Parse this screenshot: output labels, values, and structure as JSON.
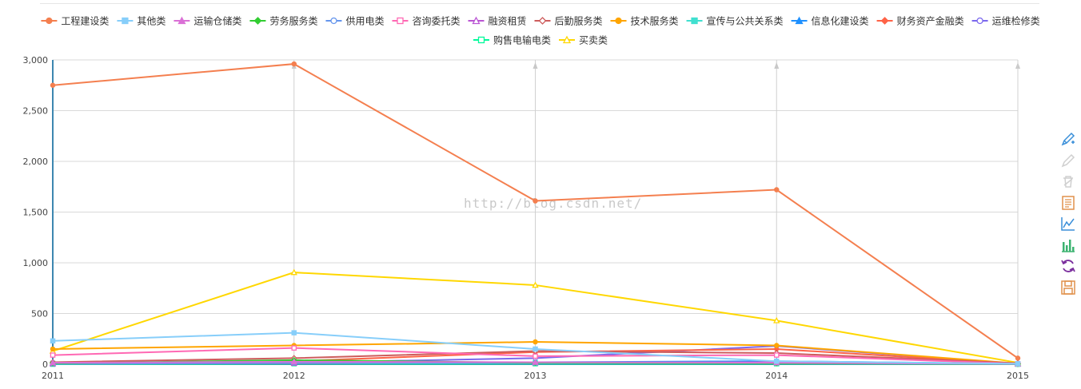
{
  "watermark": "http://blog.csdn.net/",
  "toolbox": [
    {
      "name": "mark-pen-icon",
      "color": "#3a8fd9",
      "enabled": true
    },
    {
      "name": "mark-undo-icon",
      "color": "#cfcfcf",
      "enabled": false
    },
    {
      "name": "mark-clear-icon",
      "color": "#cfcfcf",
      "enabled": false
    },
    {
      "name": "data-view-icon",
      "color": "#e0914b",
      "enabled": true
    },
    {
      "name": "line-chart-icon",
      "color": "#3a8fd9",
      "enabled": true
    },
    {
      "name": "bar-chart-icon",
      "color": "#3cb371",
      "enabled": true
    },
    {
      "name": "restore-icon",
      "color": "#7b2f9e",
      "enabled": true
    },
    {
      "name": "save-image-icon",
      "color": "#e0914b",
      "enabled": true
    }
  ],
  "chart_data": {
    "type": "line",
    "x": [
      "2011",
      "2012",
      "2013",
      "2014",
      "2015"
    ],
    "ylim": [
      0,
      3000
    ],
    "yticks": [
      "0",
      "500",
      "1,000",
      "1,500",
      "2,000",
      "2,500",
      "3,000"
    ],
    "yticks_values": [
      0,
      500,
      1000,
      1500,
      2000,
      2500,
      3000
    ],
    "grid": true,
    "legend_position": "top-center",
    "series": [
      {
        "name": "工程建设类",
        "color": "#f47f4f",
        "symbol": "circle-filled",
        "values": [
          2750,
          2960,
          1610,
          1720,
          60
        ]
      },
      {
        "name": "其他类",
        "color": "#87cefa",
        "symbol": "square-filled",
        "values": [
          230,
          310,
          150,
          30,
          5
        ]
      },
      {
        "name": "运输仓储类",
        "color": "#da70d6",
        "symbol": "triangle-filled",
        "values": [
          15,
          25,
          20,
          15,
          3
        ]
      },
      {
        "name": "劳务服务类",
        "color": "#32cd32",
        "symbol": "diamond-filled",
        "values": [
          10,
          40,
          15,
          10,
          2
        ]
      },
      {
        "name": "供用电类",
        "color": "#6495ed",
        "symbol": "circle-empty",
        "values": [
          5,
          15,
          10,
          8,
          2
        ]
      },
      {
        "name": "咨询委托类",
        "color": "#ff69b4",
        "symbol": "square-empty",
        "values": [
          90,
          160,
          80,
          90,
          5
        ]
      },
      {
        "name": "融资租赁",
        "color": "#ba55d3",
        "symbol": "triangle-empty",
        "values": [
          5,
          10,
          15,
          20,
          2
        ]
      },
      {
        "name": "后勤服务类",
        "color": "#cd5c5c",
        "symbol": "diamond-empty",
        "values": [
          20,
          60,
          130,
          110,
          10
        ]
      },
      {
        "name": "技术服务类",
        "color": "#ffa500",
        "symbol": "circle-filled",
        "values": [
          150,
          185,
          220,
          185,
          8
        ]
      },
      {
        "name": "宣传与公共关系类",
        "color": "#40e0d0",
        "symbol": "square-filled",
        "values": [
          10,
          20,
          15,
          20,
          3
        ]
      },
      {
        "name": "信息化建设类",
        "color": "#1e90ff",
        "symbol": "triangle-filled",
        "values": [
          15,
          20,
          20,
          30,
          5
        ]
      },
      {
        "name": "财务资产金融类",
        "color": "#ff6347",
        "symbol": "diamond-filled",
        "values": [
          10,
          30,
          120,
          150,
          5
        ]
      },
      {
        "name": "运维检修类",
        "color": "#7b68ee",
        "symbol": "circle-empty",
        "values": [
          5,
          15,
          60,
          180,
          5
        ]
      },
      {
        "name": "购售电输电类",
        "color": "#00fa9a",
        "symbol": "square-empty",
        "values": [
          0,
          5,
          5,
          5,
          0
        ]
      },
      {
        "name": "买卖类",
        "color": "#ffd700",
        "symbol": "triangle-empty",
        "values": [
          130,
          905,
          780,
          430,
          15
        ]
      }
    ]
  }
}
